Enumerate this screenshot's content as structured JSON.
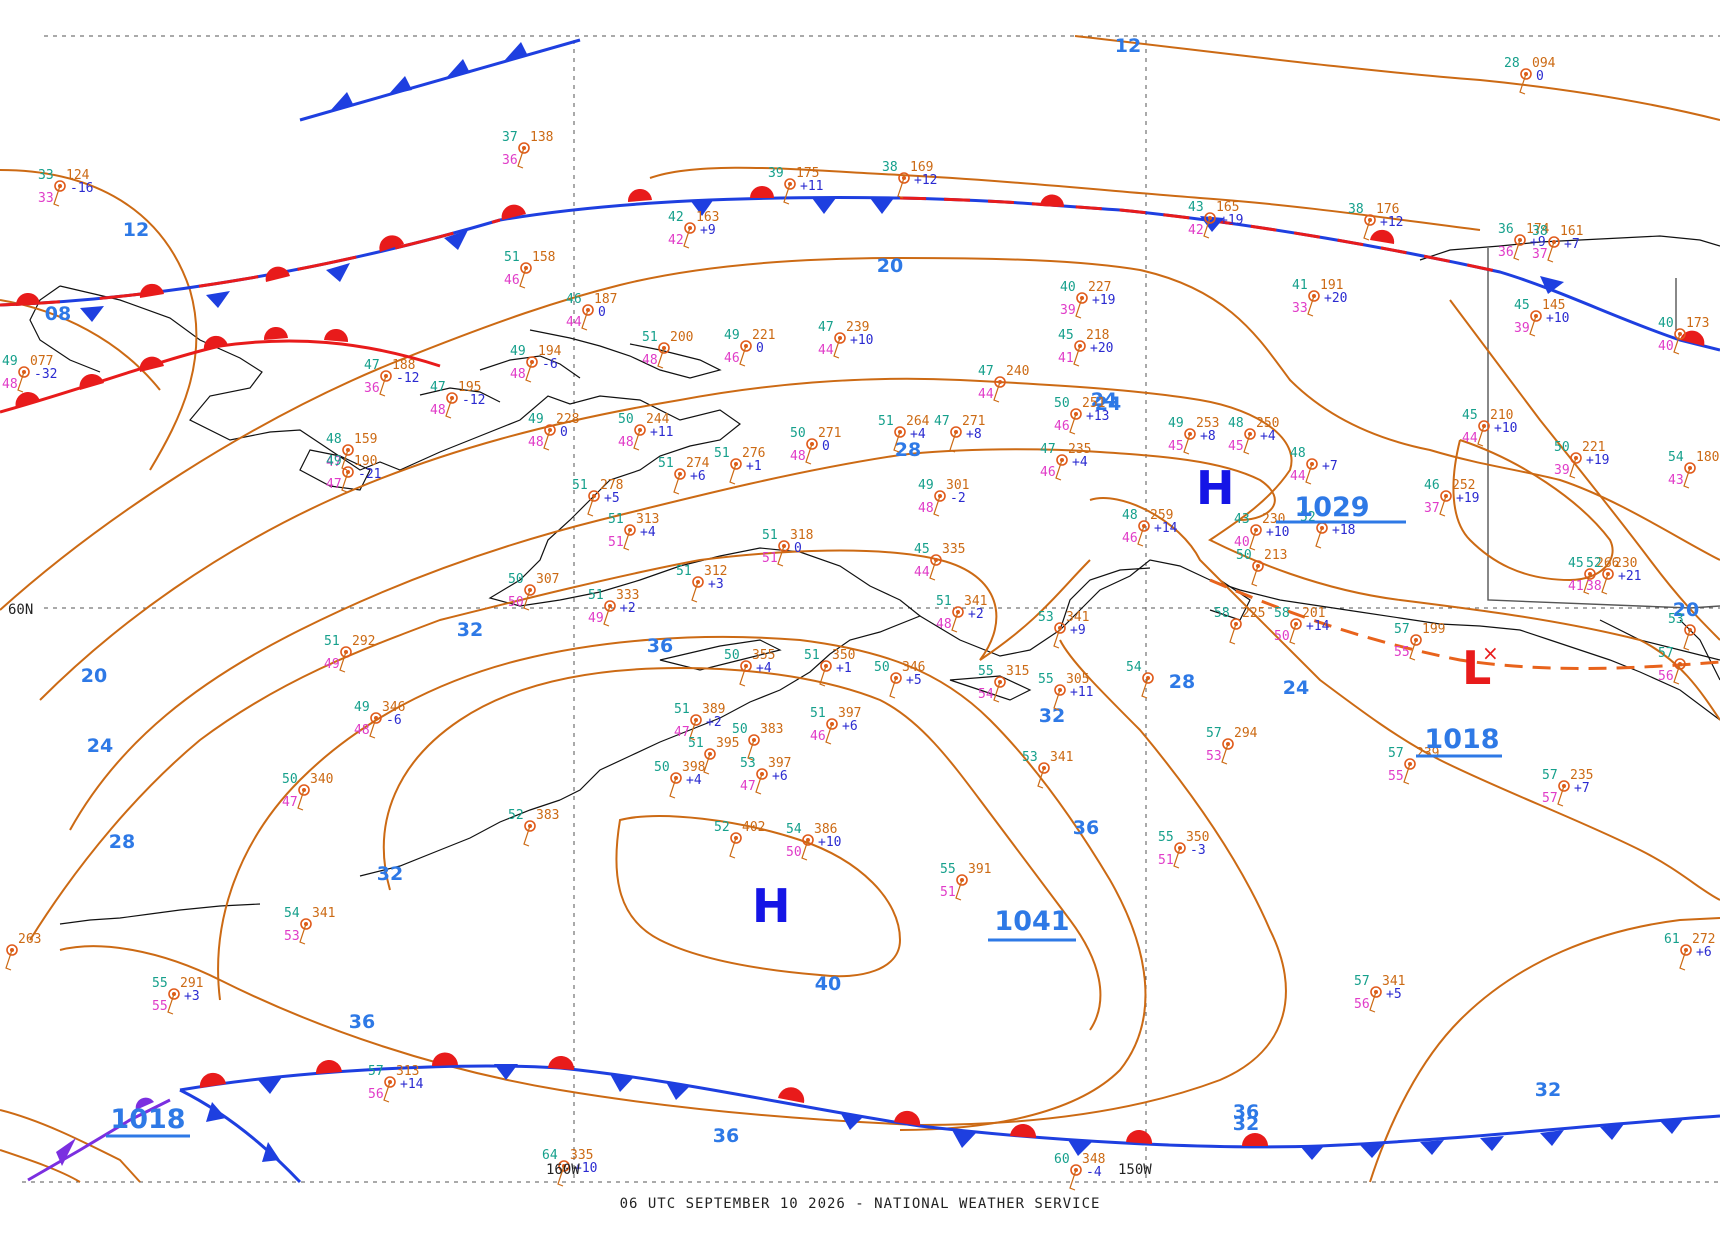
{
  "footer": "06 UTC SEPTEMBER 10 2026 - NATIONAL WEATHER SERVICE",
  "axis_labels": {
    "lat_60": "60N",
    "lon_160": "160W",
    "lon_150": "150W"
  },
  "colors": {
    "isobar": "#cc6a14",
    "isobar_label": "#2e79e6",
    "high": "#1515e6",
    "low": "#e81b1b",
    "cold_front": "#1e3fe0",
    "warm_front": "#e81b1b",
    "trough": "#e8631c",
    "occluded": "#7b2fe0"
  },
  "pressure_centers": [
    {
      "id": "high-gulf",
      "type": "H",
      "value": "1029"
    },
    {
      "id": "high-bering",
      "type": "H",
      "value": "1041"
    },
    {
      "id": "low-canada",
      "type": "L",
      "value": "1018"
    }
  ],
  "pressure_values": {
    "bottom_left": "1018"
  },
  "isobar_labels": [
    "12",
    "12",
    "08",
    "20",
    "24",
    "28",
    "32",
    "36",
    "20",
    "24",
    "28",
    "32",
    "36",
    "40",
    "36",
    "32",
    "36",
    "28",
    "24",
    "32",
    "36",
    "24",
    "32",
    "20"
  ],
  "stations": [
    {
      "t": "33",
      "p": "124",
      "d": "33",
      "c": "-16"
    },
    {
      "t": "37",
      "p": "138",
      "d": "36",
      "c": ""
    },
    {
      "t": "39",
      "p": "175",
      "d": "",
      "c": "+11"
    },
    {
      "t": "38",
      "p": "169",
      "d": "",
      "c": "+12"
    },
    {
      "t": "42",
      "p": "163",
      "d": "42",
      "c": "+9"
    },
    {
      "t": "51",
      "p": "158",
      "d": "46",
      "c": ""
    },
    {
      "t": "46",
      "p": "187",
      "d": "44",
      "c": "0"
    },
    {
      "t": "49",
      "p": "077",
      "d": "48",
      "c": "-32"
    },
    {
      "t": "47",
      "p": "188",
      "d": "36",
      "c": "-12"
    },
    {
      "t": "47",
      "p": "195",
      "d": "48",
      "c": "-12"
    },
    {
      "t": "49",
      "p": "194",
      "d": "48",
      "c": "-6"
    },
    {
      "t": "51",
      "p": "200",
      "d": "48",
      "c": ""
    },
    {
      "t": "49",
      "p": "221",
      "d": "46",
      "c": "0"
    },
    {
      "t": "47",
      "p": "239",
      "d": "44",
      "c": "+10"
    },
    {
      "t": "40",
      "p": "227",
      "d": "39",
      "c": "+19"
    },
    {
      "t": "45",
      "p": "218",
      "d": "41",
      "c": "+20"
    },
    {
      "t": "41",
      "p": "191",
      "d": "33",
      "c": "+20"
    },
    {
      "t": "38",
      "p": "176",
      "d": "",
      "c": "+12"
    },
    {
      "t": "43",
      "p": "165",
      "d": "42",
      "c": "+19"
    },
    {
      "t": "28",
      "p": "094",
      "d": "",
      "c": "0"
    },
    {
      "t": "36",
      "p": "174",
      "d": "36",
      "c": "+9"
    },
    {
      "t": "38",
      "p": "161",
      "d": "37",
      "c": "+7"
    },
    {
      "t": "45",
      "p": "145",
      "d": "39",
      "c": "+10"
    },
    {
      "t": "48",
      "p": "159",
      "d": "47",
      "c": ""
    },
    {
      "t": "49",
      "p": "190",
      "d": "47",
      "c": "-21"
    },
    {
      "t": "49",
      "p": "228",
      "d": "48",
      "c": "0"
    },
    {
      "t": "50",
      "p": "244",
      "d": "48",
      "c": "+11"
    },
    {
      "t": "50",
      "p": "271",
      "d": "48",
      "c": "0"
    },
    {
      "t": "51",
      "p": "264",
      "d": "",
      "c": "+4"
    },
    {
      "t": "47",
      "p": "271",
      "d": "",
      "c": "+8"
    },
    {
      "t": "47",
      "p": "240",
      "d": "44",
      "c": ""
    },
    {
      "t": "50",
      "p": "251",
      "d": "46",
      "c": "+13"
    },
    {
      "t": "49",
      "p": "253",
      "d": "45",
      "c": "+8"
    },
    {
      "t": "48",
      "p": "250",
      "d": "45",
      "c": "+4"
    },
    {
      "t": "48",
      "p": "",
      "d": "44",
      "c": "+7"
    },
    {
      "t": "45",
      "p": "210",
      "d": "44",
      "c": "+10"
    },
    {
      "t": "50",
      "p": "221",
      "d": "39",
      "c": "+19"
    },
    {
      "t": "47",
      "p": "235",
      "d": "46",
      "c": "+4"
    },
    {
      "t": "51",
      "p": "274",
      "d": "",
      "c": "+6"
    },
    {
      "t": "51",
      "p": "276",
      "d": "",
      "c": "+1"
    },
    {
      "t": "49",
      "p": "301",
      "d": "48",
      "c": "-2"
    },
    {
      "t": "48",
      "p": "259",
      "d": "46",
      "c": "+14"
    },
    {
      "t": "43",
      "p": "230",
      "d": "40",
      "c": "+10"
    },
    {
      "t": "52",
      "p": "",
      "d": "",
      "c": "+18"
    },
    {
      "t": "46",
      "p": "252",
      "d": "37",
      "c": "+19"
    },
    {
      "t": "51",
      "p": "278",
      "d": "",
      "c": "+5"
    },
    {
      "t": "51",
      "p": "313",
      "d": "51",
      "c": "+4"
    },
    {
      "t": "51",
      "p": "318",
      "d": "51",
      "c": "0"
    },
    {
      "t": "45",
      "p": "335",
      "d": "44",
      "c": ""
    },
    {
      "t": "45",
      "p": "266",
      "d": "41",
      "c": ""
    },
    {
      "t": "52",
      "p": "230",
      "d": "38",
      "c": "+21"
    },
    {
      "t": "54",
      "p": "180",
      "d": "43",
      "c": ""
    },
    {
      "t": "50",
      "p": "307",
      "d": "50",
      "c": ""
    },
    {
      "t": "51",
      "p": "333",
      "d": "49",
      "c": "+2"
    },
    {
      "t": "51",
      "p": "312",
      "d": "",
      "c": "+3"
    },
    {
      "t": "51",
      "p": "341",
      "d": "48",
      "c": "+2"
    },
    {
      "t": "58",
      "p": "225",
      "d": "",
      "c": ""
    },
    {
      "t": "58",
      "p": "201",
      "d": "50",
      "c": "+14"
    },
    {
      "t": "50",
      "p": "213",
      "d": "",
      "c": ""
    },
    {
      "t": "57",
      "p": "199",
      "d": "55",
      "c": ""
    },
    {
      "t": "51",
      "p": "292",
      "d": "49",
      "c": ""
    },
    {
      "t": "50",
      "p": "355",
      "d": "",
      "c": "+4"
    },
    {
      "t": "51",
      "p": "350",
      "d": "",
      "c": "+1"
    },
    {
      "t": "50",
      "p": "346",
      "d": "",
      "c": "+5"
    },
    {
      "t": "53",
      "p": "341",
      "d": "",
      "c": "+9"
    },
    {
      "t": "54",
      "p": "",
      "d": "",
      "c": ""
    },
    {
      "t": "49",
      "p": "346",
      "d": "48",
      "c": "-6"
    },
    {
      "t": "51",
      "p": "389",
      "d": "47",
      "c": "+2"
    },
    {
      "t": "50",
      "p": "383",
      "d": "",
      "c": ""
    },
    {
      "t": "51",
      "p": "397",
      "d": "46",
      "c": "+6"
    },
    {
      "t": "55",
      "p": "315",
      "d": "54",
      "c": ""
    },
    {
      "t": "55",
      "p": "305",
      "d": "",
      "c": "+11"
    },
    {
      "t": "57",
      "p": "294",
      "d": "53",
      "c": ""
    },
    {
      "t": "57",
      "p": "239",
      "d": "55",
      "c": ""
    },
    {
      "t": "57",
      "p": "235",
      "d": "57",
      "c": "+7"
    },
    {
      "t": "50",
      "p": "340",
      "d": "47",
      "c": ""
    },
    {
      "t": "51",
      "p": "395",
      "d": "",
      "c": ""
    },
    {
      "t": "50",
      "p": "398",
      "d": "",
      "c": "+4"
    },
    {
      "t": "53",
      "p": "397",
      "d": "47",
      "c": "+6"
    },
    {
      "t": "53",
      "p": "341",
      "d": "",
      "c": ""
    },
    {
      "t": "52",
      "p": "383",
      "d": "",
      "c": ""
    },
    {
      "t": "52",
      "p": "402",
      "d": "",
      "c": ""
    },
    {
      "t": "54",
      "p": "386",
      "d": "50",
      "c": "+10"
    },
    {
      "t": "55",
      "p": "350",
      "d": "51",
      "c": "-3"
    },
    {
      "t": "55",
      "p": "391",
      "d": "51",
      "c": ""
    },
    {
      "t": "54",
      "p": "341",
      "d": "53",
      "c": ""
    },
    {
      "t": "55",
      "p": "291",
      "d": "55",
      "c": "+3"
    },
    {
      "t": "57",
      "p": "313",
      "d": "56",
      "c": "+14"
    },
    {
      "t": "57",
      "p": "341",
      "d": "56",
      "c": "+5"
    },
    {
      "t": "61",
      "p": "272",
      "d": "",
      "c": "+6"
    },
    {
      "t": "64",
      "p": "335",
      "d": "",
      "c": "+10"
    },
    {
      "t": "60",
      "p": "348",
      "d": "",
      "c": "-4"
    },
    {
      "t": "57",
      "p": "",
      "d": "56",
      "c": ""
    },
    {
      "t": "53",
      "p": "",
      "d": "",
      "c": ""
    },
    {
      "t": "",
      "p": "263",
      "d": "",
      "c": ""
    },
    {
      "t": "40",
      "p": "173",
      "d": "40",
      "c": ""
    }
  ]
}
